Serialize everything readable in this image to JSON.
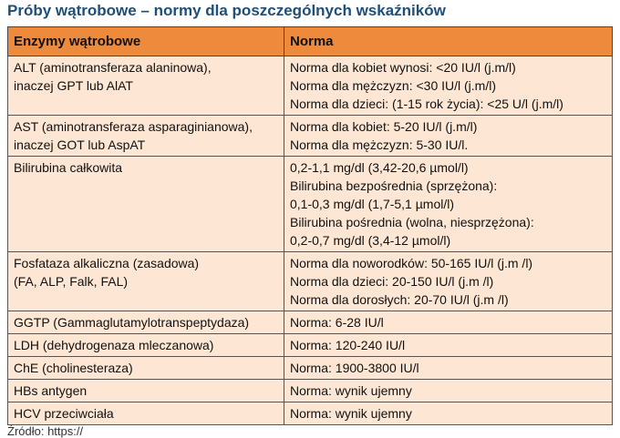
{
  "title": "Próby wątrobowe – normy dla poszczególnych wskaźników",
  "table": {
    "header": [
      "Enzymy wątrobowe",
      "Norma"
    ],
    "rows": [
      [
        [
          "ALT (aminotransferaza alaninowa),",
          "inaczej GPT lub AlAT"
        ],
        [
          "Norma dla kobiet wynosi: <20 IU/l (j.m/l)",
          "Norma dla mężczyzn: <30 IU/l (j.m/l)",
          "Norma dla dzieci: (1-15 rok życia): <25 U/l (j.m/l)"
        ]
      ],
      [
        [
          "AST (aminotransferaza asparaginianowa),",
          "inaczej GOT lub AspAT"
        ],
        [
          "Norma dla kobiet: 5-20 IU/l (j.m/l)",
          "Norma dla mężczyzn: 5-30 IU/l."
        ]
      ],
      [
        [
          "Bilirubina całkowita"
        ],
        [
          "0,2-1,1 mg/dl (3,42-20,6 µmol/l)",
          "Bilirubina bezpośrednia (sprzężona):",
          "0,1-0,3 mg/dl (1,7-5,1 µmol/l)",
          "Bilirubina pośrednia (wolna, niesprzężona):",
          "0,2-0,7 mg/dl (3,4-12 µmol/l)"
        ]
      ],
      [
        [
          "Fosfataza alkaliczna (zasadowa)",
          "(FA, ALP, Falk, FAL)"
        ],
        [
          "Norma dla noworodków: 50-165 IU/l (j.m /l)",
          "Norma dla dzieci: 20-150 IU/l (j.m /l)",
          "Norma dla dorosłych: 20-70 IU/l (j.m /l)"
        ]
      ],
      [
        [
          "GGTP (Gammaglutamylotranspeptydaza)"
        ],
        [
          "Norma: 6-28 IU/l"
        ]
      ],
      [
        [
          "LDH (dehydrogenaza mleczanowa)"
        ],
        [
          "Norma: 120-240 IU/l"
        ]
      ],
      [
        [
          "ChE (cholinesteraza)"
        ],
        [
          "Norma: 1900-3800 IU/l"
        ]
      ],
      [
        [
          "HBs antygen"
        ],
        [
          "Norma: wynik ujemny"
        ]
      ],
      [
        [
          "HCV przeciwciała"
        ],
        [
          "Norma: wynik ujemny"
        ]
      ]
    ]
  },
  "source": "Źródło: https://"
}
